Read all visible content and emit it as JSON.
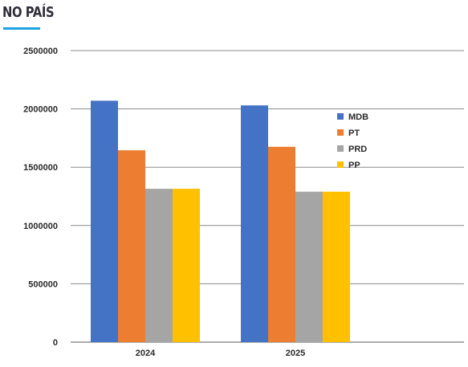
{
  "header": {
    "title": "NO PAÍS",
    "accent_color": "#1da1e0"
  },
  "chart_data": {
    "type": "bar",
    "categories": [
      "2024",
      "2025"
    ],
    "series": [
      {
        "name": "MDB",
        "color": "#4472c4",
        "values": [
          2070000,
          2030000
        ]
      },
      {
        "name": "PT",
        "color": "#ed7d31",
        "values": [
          1645000,
          1675000
        ]
      },
      {
        "name": "PRD",
        "color": "#a5a5a5",
        "values": [
          1315000,
          1290000
        ]
      },
      {
        "name": "PP",
        "color": "#ffc000",
        "values": [
          1315000,
          1290000
        ]
      }
    ],
    "ylim": [
      0,
      2500000
    ],
    "yticks": [
      0,
      500000,
      1000000,
      1500000,
      2000000,
      2500000
    ],
    "ytick_labels": [
      "0",
      "500000",
      "1000000",
      "1500000",
      "2000000",
      "2500000"
    ],
    "grid": true,
    "legend_position": "right"
  }
}
